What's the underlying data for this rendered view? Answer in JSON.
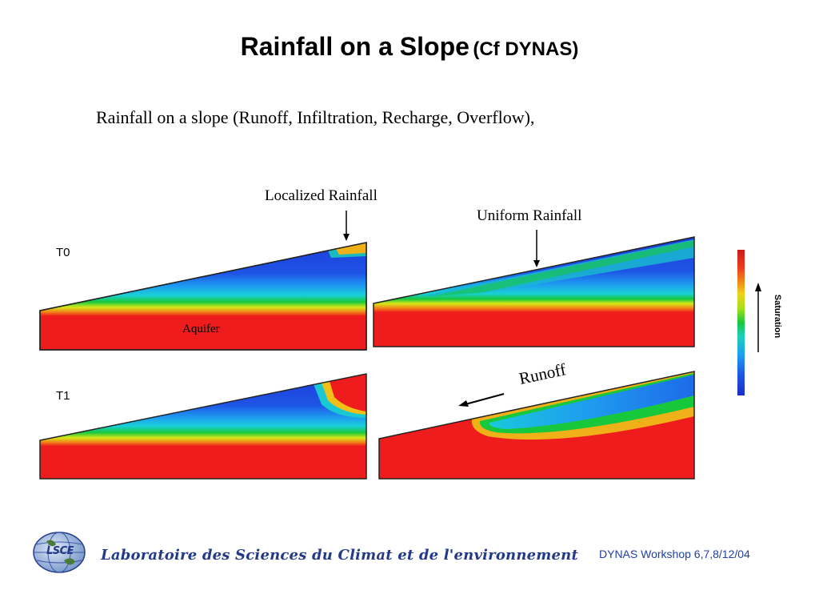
{
  "slide": {
    "title_main": "Rainfall on a Slope",
    "title_paren": "(Cf DYNAS)",
    "subtitle": "Rainfall on a slope  (Runoff, Infiltration, Recharge, Overflow),"
  },
  "labels": {
    "localized": "Localized Rainfall",
    "uniform": "Uniform Rainfall",
    "runoff": "Runoff",
    "aquifer": "Aquifer",
    "t0": "T0",
    "t1": "T1",
    "saturation": "Saturation"
  },
  "footer": {
    "lab_name": "Laboratoire des Sciences du Climat et de l'environnement",
    "workshop": "DYNAS Workshop 6,7,8/12/04",
    "logo_text": "LSCE"
  },
  "colors": {
    "saturated": "#ee1c1c",
    "dry": "#1e3ad8",
    "text_blue": "#1f3fa6"
  }
}
